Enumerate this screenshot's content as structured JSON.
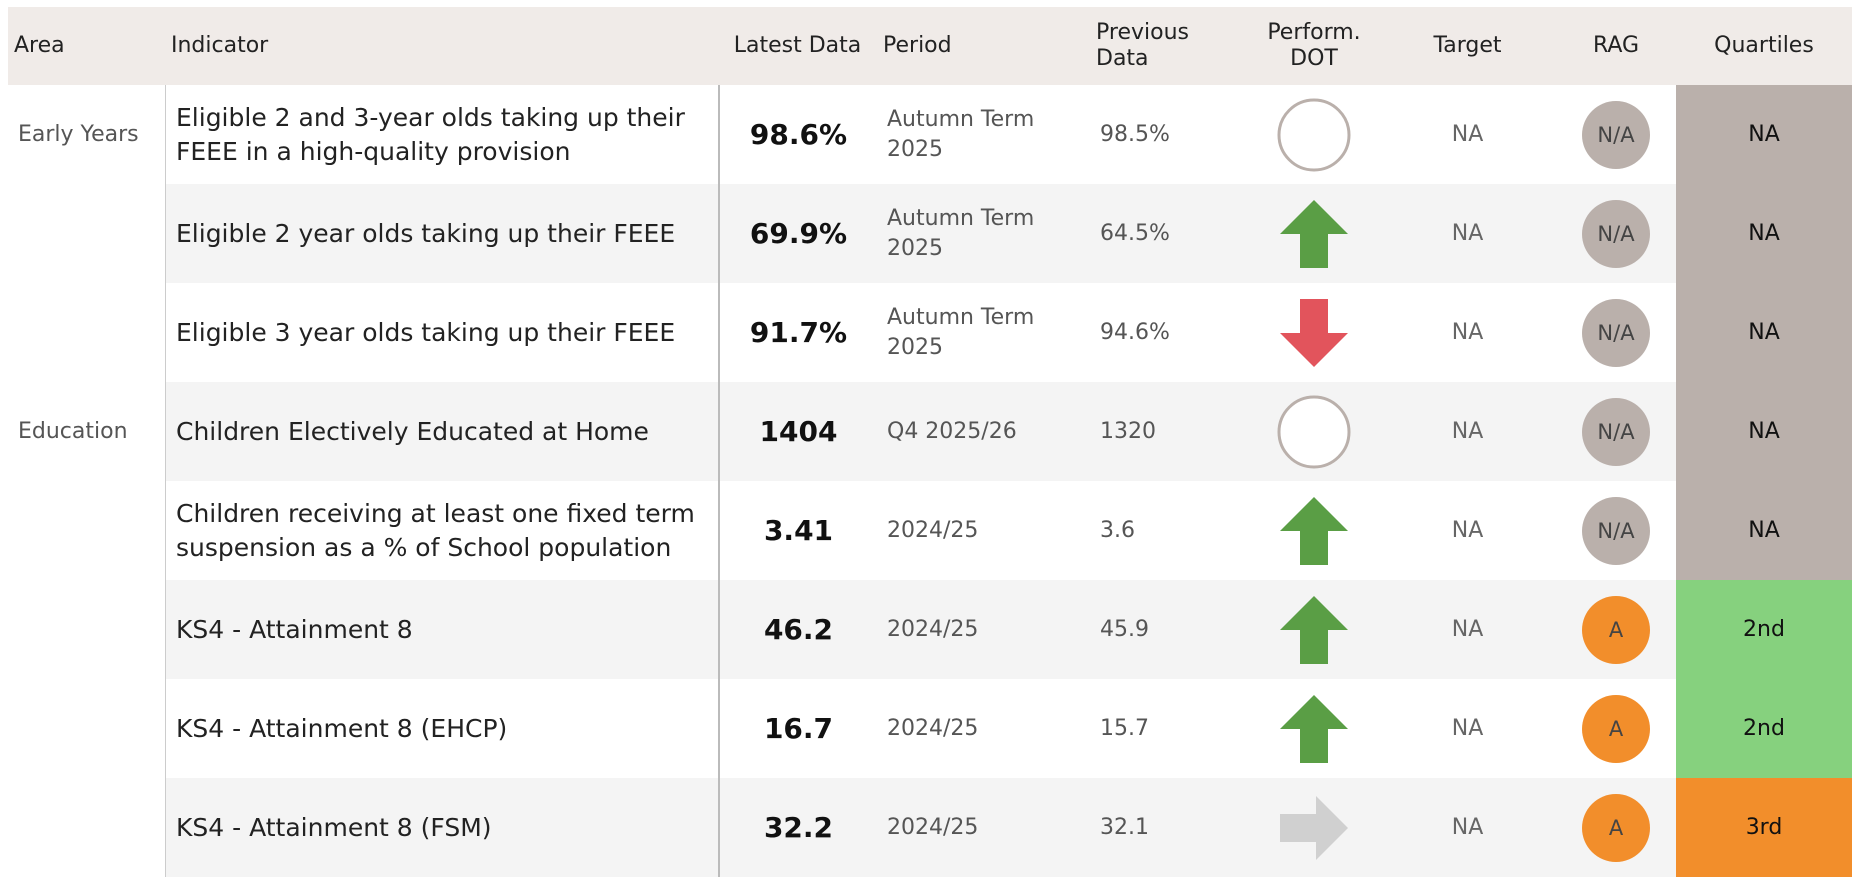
{
  "table": {
    "columns": [
      "Area",
      "Indicator",
      "Latest Data",
      "Period",
      "Previous\nData",
      "Perform.\nDOT",
      "Target",
      "RAG",
      "Quartiles"
    ],
    "rows": [
      {
        "area": "Early Years",
        "indicator": "Eligible 2 and 3-year olds taking up their FEEE in a high-quality provision",
        "latest": "98.6%",
        "period": "Autumn Term 2025",
        "previous": "98.5%",
        "dot": "none",
        "target": "NA",
        "rag": "N/A",
        "rag_color": "#bab0ab",
        "quartile": "NA",
        "quartile_color": "#bab0ab"
      },
      {
        "area": null,
        "indicator": "Eligible 2 year olds taking up their FEEE",
        "latest": "69.9%",
        "period": "Autumn Term 2025",
        "previous": "64.5%",
        "dot": "up",
        "target": "NA",
        "rag": "N/A",
        "rag_color": "#bab0ab",
        "quartile": "NA",
        "quartile_color": "#bab0ab"
      },
      {
        "area": null,
        "indicator": "Eligible 3 year olds taking up their FEEE",
        "latest": "91.7%",
        "period": "Autumn Term 2025",
        "previous": "94.6%",
        "dot": "down",
        "target": "NA",
        "rag": "N/A",
        "rag_color": "#bab0ab",
        "quartile": "NA",
        "quartile_color": "#bab0ab"
      },
      {
        "area": "Education",
        "indicator": "Children Electively Educated at Home",
        "latest": "1404",
        "period": "Q4 2025/26",
        "previous": "1320",
        "dot": "none",
        "target": "NA",
        "rag": "N/A",
        "rag_color": "#bab0ab",
        "quartile": "NA",
        "quartile_color": "#bab0ab"
      },
      {
        "area": null,
        "indicator": "Children receiving at least one fixed term suspension as a % of School population",
        "latest": "3.41",
        "period": "2024/25",
        "previous": "3.6",
        "dot": "up",
        "target": "NA",
        "rag": "N/A",
        "rag_color": "#bab0ab",
        "quartile": "NA",
        "quartile_color": "#bab0ab"
      },
      {
        "area": null,
        "indicator": "KS4 - Attainment 8",
        "latest": "46.2",
        "period": "2024/25",
        "previous": "45.9",
        "dot": "up",
        "target": "NA",
        "rag": "A",
        "rag_color": "#f28e2b",
        "quartile": "2nd",
        "quartile_color": "#86d17e"
      },
      {
        "area": null,
        "indicator": "KS4 - Attainment 8 (EHCP)",
        "latest": "16.7",
        "period": "2024/25",
        "previous": "15.7",
        "dot": "up",
        "target": "NA",
        "rag": "A",
        "rag_color": "#f28e2b",
        "quartile": "2nd",
        "quartile_color": "#86d17e"
      },
      {
        "area": null,
        "indicator": "KS4 - Attainment 8 (FSM)",
        "latest": "32.2",
        "period": "2024/25",
        "previous": "32.1",
        "dot": "right",
        "target": "NA",
        "rag": "A",
        "rag_color": "#f28e2b",
        "quartile": "3rd",
        "quartile_color": "#f28e2b"
      }
    ]
  }
}
